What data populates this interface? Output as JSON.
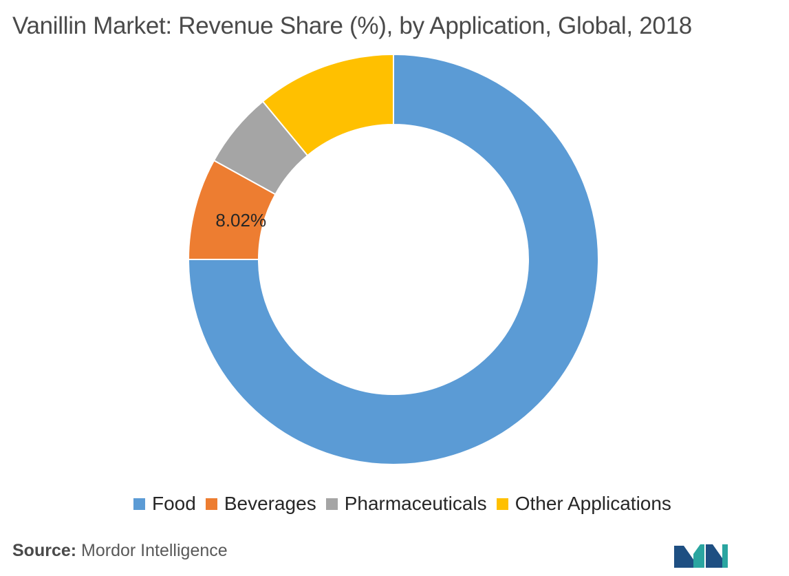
{
  "chart_data": {
    "type": "pie",
    "title": "Vanillin Market: Revenue Share (%), by Application, Global, 2018",
    "categories": [
      "Food",
      "Beverages",
      "Pharmaceuticals",
      "Other Applications"
    ],
    "values": [
      75.0,
      8.02,
      5.98,
      11.0
    ],
    "data_labels": [
      "",
      "8.02%",
      "",
      ""
    ],
    "colors": [
      "#5b9bd5",
      "#ed7d31",
      "#a5a5a5",
      "#ffc000"
    ],
    "donut": true,
    "start": "12 o'clock",
    "direction": "clockwise",
    "legend_position": "bottom"
  },
  "source": {
    "label": "Source:",
    "text": "Mordor Intelligence"
  },
  "logo": {
    "icon": "mordor-intelligence-logo-icon",
    "colors": [
      "#1e4f82",
      "#2aa5a0"
    ]
  }
}
